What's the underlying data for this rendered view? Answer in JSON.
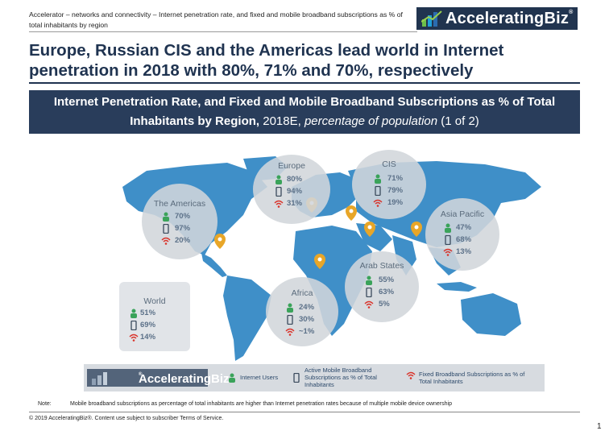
{
  "header": {
    "breadcrumb": "Accelerator – networks and connectivity – Internet penetration rate, and fixed and mobile broadband subscriptions as % of total inhabitants by region",
    "logo_text": "AcceleratingBiz",
    "logo_reg": "®"
  },
  "title": "Europe, Russian CIS and the Americas lead world in Internet penetration in 2018 with 80%, 71% and 70%, respectively",
  "subtitle": {
    "bold": "Internet Penetration Rate, and Fixed and Mobile Broadband Subscriptions as % of Total Inhabitants by Region,",
    "year": " 2018E, ",
    "italic": "percentage of population",
    "part": " (1 of 2)"
  },
  "regions": {
    "americas": {
      "name": "The Americas",
      "internet": "70%",
      "mobile": "97%",
      "fixed": "20%"
    },
    "europe": {
      "name": "Europe",
      "internet": "80%",
      "mobile": "94%",
      "fixed": "31%"
    },
    "cis": {
      "name": "CIS",
      "internet": "71%",
      "mobile": "79%",
      "fixed": "19%"
    },
    "asia": {
      "name": "Asia Pacific",
      "internet": "47%",
      "mobile": "68%",
      "fixed": "13%"
    },
    "arab": {
      "name": "Arab States",
      "internet": "55%",
      "mobile": "63%",
      "fixed": "5%"
    },
    "africa": {
      "name": "Africa",
      "internet": "24%",
      "mobile": "30%",
      "fixed": "~1%"
    },
    "world": {
      "name": "World",
      "internet": "51%",
      "mobile": "69%",
      "fixed": "14%"
    }
  },
  "legend": {
    "logo_text": "AcceleratingBiz",
    "logo_reg": "®",
    "internet": "Internet Users",
    "mobile": "Active Mobile Broadband Subscriptions as % of Total Inhabitants",
    "fixed": "Fixed Broadband Subscriptions as % of Total Inhabitants"
  },
  "note": {
    "label": "Note:",
    "text": "Mobile broadband subscriptions as percentage of total inhabitants are higher than Internet penetration rates because of multiple mobile device ownership"
  },
  "footer": {
    "copyright": "© 2019 AcceleratingBiz®. Content use subject to subscriber Terms of Service.",
    "page": "1"
  },
  "colors": {
    "navy": "#1f3350",
    "map_blue": "#3f8fc8",
    "pin": "#e8a628",
    "green": "#3aa35a",
    "red": "#d9342b"
  }
}
